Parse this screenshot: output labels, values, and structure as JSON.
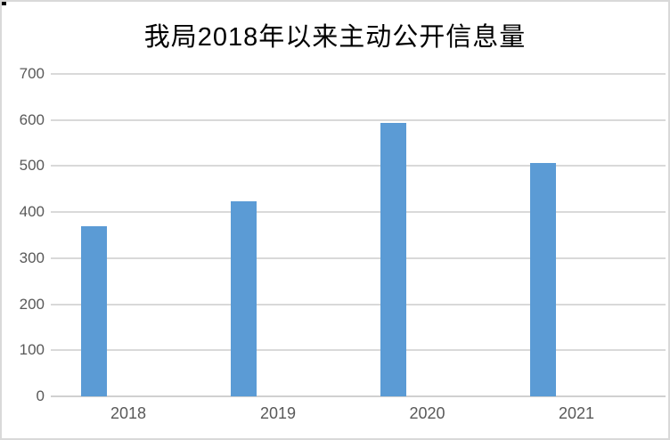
{
  "chart": {
    "title": "我局2018年以来主动公开信息量"
  },
  "chart_data": {
    "type": "bar",
    "title": "我局2018年以来主动公开信息量",
    "categories": [
      "2018",
      "2019",
      "2020",
      "2021"
    ],
    "values": [
      370,
      423,
      594,
      506
    ],
    "xlabel": "",
    "ylabel": "",
    "ylim": [
      0,
      700
    ],
    "yticks": [
      0,
      100,
      200,
      300,
      400,
      500,
      600,
      700
    ],
    "grid": "horizontal",
    "legend": "none",
    "colors": {
      "bar": "#5b9bd5",
      "gridline": "#d9d9d9",
      "axis_label": "#595959",
      "title": "#000000",
      "background": "#ffffff",
      "frame_border": "#d9d9d9"
    }
  }
}
